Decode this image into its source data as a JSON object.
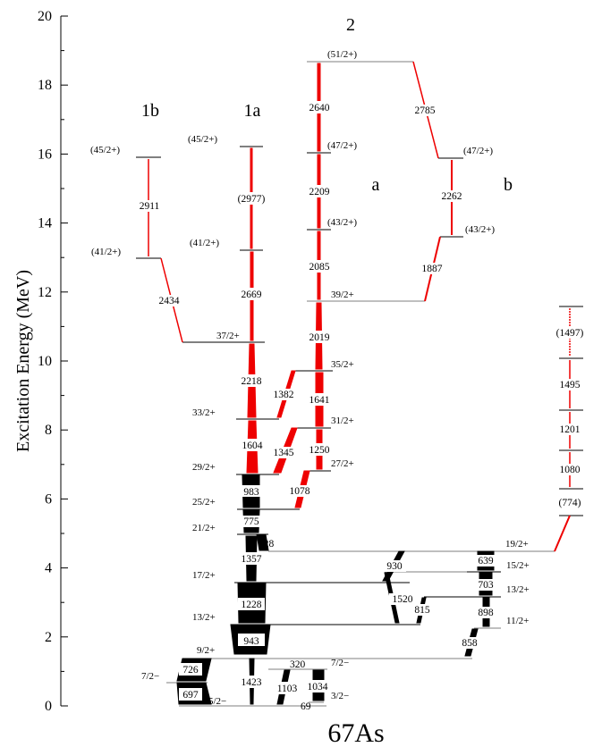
{
  "nucleus": "67As",
  "y_axis": {
    "title": "Excitation Energy (MeV)",
    "ticks": [
      "0",
      "2",
      "4",
      "6",
      "8",
      "10",
      "12",
      "14",
      "16",
      "18",
      "20"
    ]
  },
  "band_labels": {
    "b1b": "1b",
    "b1a": "1a",
    "b2": "2",
    "sa": "a",
    "sb": "b"
  },
  "spins": {
    "s5_2": "5/2−",
    "s3_2": "3/2−",
    "s7_2a": "7/2−",
    "s7_2b": "7/2−",
    "s9_2": "9/2+",
    "s11_2": "11/2+",
    "s13_2a": "13/2+",
    "s13_2b": "13/2+",
    "s15_2": "15/2+",
    "s17_2": "17/2+",
    "s19_2": "19/2+",
    "s21_2": "21/2+",
    "s25_2": "25/2+",
    "s27_2": "27/2+",
    "s29_2": "29/2+",
    "s31_2": "31/2+",
    "s33_2": "33/2+",
    "s35_2": "35/2+",
    "s37_2": "37/2+",
    "s39_2": "39/2+",
    "s41_2a": "(41/2+)",
    "s41_2b": "(41/2+)",
    "s43_2a": "(43/2+)",
    "s43_2b": "(43/2+)",
    "s45_2a": "(45/2+)",
    "s45_2b": "(45/2+)",
    "s47_2a": "(47/2+)",
    "s47_2b": "(47/2+)",
    "s51_2": "(51/2+)"
  },
  "gammas": {
    "g69": "69",
    "g320": "320",
    "g428": "428",
    "g639": "639",
    "g697": "697",
    "g703": "703",
    "g726": "726",
    "g774": "(774)",
    "g775": "775",
    "g815": "815",
    "g858": "858",
    "g898": "898",
    "g930": "930",
    "g943": "943",
    "g983": "983",
    "g1034": "1034",
    "g1078": "1078",
    "g1080": "1080",
    "g1103": "1103",
    "g1201": "1201",
    "g1228": "1228",
    "g1250": "1250",
    "g1345": "1345",
    "g1357": "1357",
    "g1382": "1382",
    "g1423": "1423",
    "g1495": "1495",
    "g1497": "(1497)",
    "g1520": "1520",
    "g1604": "1604",
    "g1641": "1641",
    "g1887": "1887",
    "g2019": "2019",
    "g2085": "2085",
    "g2209": "2209",
    "g2218": "2218",
    "g2262": "2262",
    "g2434": "2434",
    "g2640": "2640",
    "g2669": "2669",
    "g2785": "2785",
    "g2911": "2911",
    "g2977": "(2977)"
  }
}
